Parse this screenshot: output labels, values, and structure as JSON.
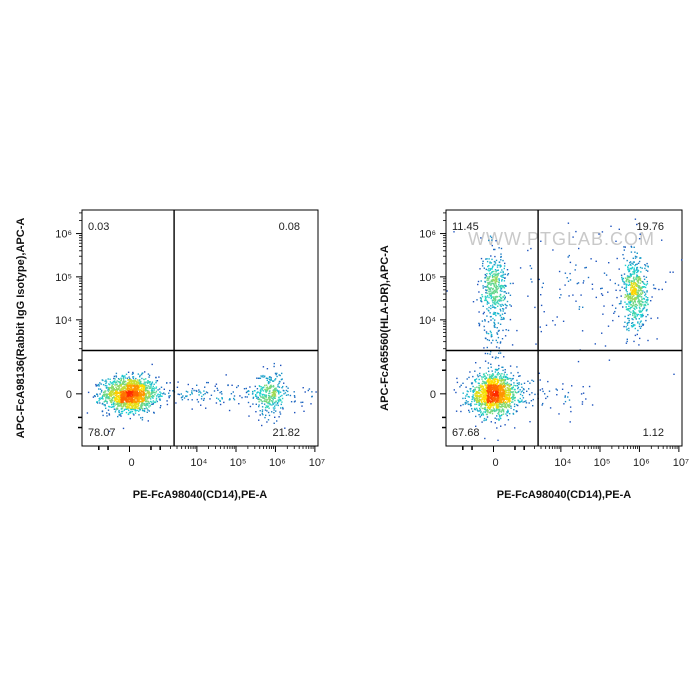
{
  "watermark": "WWW.PTGLAB.COM",
  "colors": {
    "low": "#1f1fb4",
    "mid": "#19d2d2",
    "high": "#ffe000",
    "peak": "#ff2a00",
    "axis": "#000000"
  },
  "chart_data": [
    {
      "type": "scatter",
      "xlabel": "PE-FcA98040(CD14),PE-A",
      "ylabel": "APC-FcA98136(Rabbit IgG Isotype),APC-A",
      "x_scale": "biexponential",
      "y_scale": "biexponential",
      "x_ticks": [
        "0",
        "10⁴",
        "10⁵",
        "10⁶",
        "10⁷"
      ],
      "y_ticks": [
        "0",
        "10⁴",
        "10⁵",
        "10⁶"
      ],
      "x_tick_values": [
        0,
        10000,
        100000,
        1000000,
        10000000
      ],
      "y_tick_values": [
        0,
        10000,
        100000,
        1000000
      ],
      "gate": {
        "x": 2500,
        "y": 1800
      },
      "quadrants": {
        "upper_left": "0.03",
        "upper_right": "0.08",
        "lower_left": "78.07",
        "lower_right": "21.82"
      },
      "populations": [
        {
          "x": 0,
          "y": 0,
          "n": 1400,
          "sx": 0.75,
          "sy": 0.45
        },
        {
          "x": 700000,
          "y": 0,
          "n": 280,
          "sx": 0.4,
          "sy": 0.6
        },
        {
          "x": 40000,
          "y": 0,
          "n": 220,
          "sx": 3.2,
          "sy": 0.35
        }
      ]
    },
    {
      "type": "scatter",
      "xlabel": "PE-FcA98040(CD14),PE-A",
      "ylabel": "APC-FcA65560(HLA-DR),APC-A",
      "x_scale": "biexponential",
      "y_scale": "biexponential",
      "x_ticks": [
        "0",
        "10⁴",
        "10⁵",
        "10⁶",
        "10⁷"
      ],
      "y_ticks": [
        "0",
        "10⁴",
        "10⁵",
        "10⁶"
      ],
      "x_tick_values": [
        0,
        10000,
        100000,
        1000000,
        10000000
      ],
      "y_tick_values": [
        0,
        10000,
        100000,
        1000000
      ],
      "gate": {
        "x": 2500,
        "y": 1800
      },
      "quadrants": {
        "upper_left": "11.45",
        "upper_right": "19.76",
        "lower_left": "67.68",
        "lower_right": "1.12"
      },
      "populations": [
        {
          "x": 0,
          "y": 0,
          "n": 1300,
          "sx": 0.7,
          "sy": 0.5
        },
        {
          "x": 0,
          "y": 60000,
          "n": 320,
          "sx": 0.35,
          "sy": 0.8
        },
        {
          "x": 750000,
          "y": 40000,
          "n": 520,
          "sx": 0.35,
          "sy": 0.9
        },
        {
          "x": 0,
          "y": 6000,
          "n": 160,
          "sx": 0.4,
          "sy": 2.5
        },
        {
          "x": 50000,
          "y": 80000,
          "n": 160,
          "sx": 3.0,
          "sy": 1.6
        },
        {
          "x": 6000,
          "y": 0,
          "n": 60,
          "sx": 1.5,
          "sy": 0.5
        }
      ]
    }
  ]
}
